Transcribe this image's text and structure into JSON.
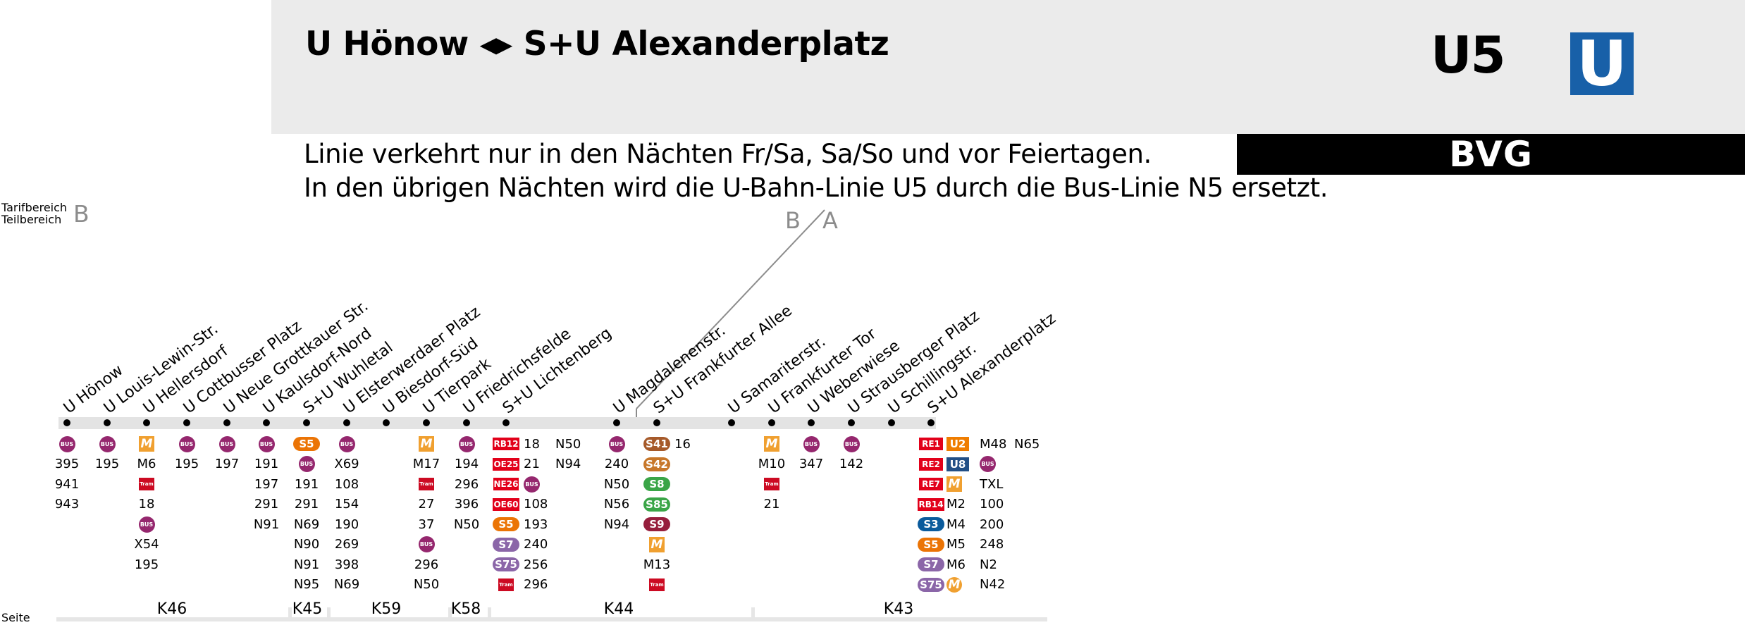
{
  "header": {
    "title": "U Hönow ◂▸ S+U Alexanderplatz",
    "line": "U5",
    "logo_letter": "U",
    "brand": "BVG",
    "colors": {
      "ubahn_blue": "#1860a8",
      "header_grey": "#ebebeb"
    }
  },
  "notice": {
    "line1": "Linie verkehrt nur in den Nächten Fr/Sa, Sa/So und vor Feiertagen.",
    "line2": "In den übrigen Nächten wird die U-Bahn-Linie U5 durch die Bus-Linie N5 ersetzt."
  },
  "tarif": {
    "label1": "Tarifbereich",
    "label2": "Teilbereich",
    "value": "B",
    "zone_left": "B",
    "zone_right": "A"
  },
  "stations": [
    {
      "name": "U Hönow",
      "connections": [
        {
          "t": "bus"
        },
        {
          "t": "text",
          "v": "395"
        },
        {
          "t": "text",
          "v": "941"
        },
        {
          "t": "text",
          "v": "943"
        }
      ]
    },
    {
      "name": "U Louis-Lewin-Str.",
      "connections": [
        {
          "t": "bus"
        },
        {
          "t": "text",
          "v": "195"
        }
      ]
    },
    {
      "name": "U Hellersdorf",
      "connections": [
        {
          "t": "metro"
        },
        {
          "t": "text",
          "v": "M6"
        },
        {
          "t": "tram"
        },
        {
          "t": "text",
          "v": "18"
        },
        {
          "t": "bus"
        },
        {
          "t": "text",
          "v": "X54"
        },
        {
          "t": "text",
          "v": "195"
        }
      ]
    },
    {
      "name": "U Cottbusser Platz",
      "connections": [
        {
          "t": "bus"
        },
        {
          "t": "text",
          "v": "195"
        }
      ]
    },
    {
      "name": "U Neue Grottkauer Str.",
      "connections": [
        {
          "t": "bus"
        },
        {
          "t": "text",
          "v": "197"
        }
      ]
    },
    {
      "name": "U Kaulsdorf-Nord",
      "connections": [
        {
          "t": "bus"
        },
        {
          "t": "text",
          "v": "191"
        },
        {
          "t": "text",
          "v": "197"
        },
        {
          "t": "text",
          "v": "291"
        },
        {
          "t": "text",
          "v": "N91"
        }
      ]
    },
    {
      "name": "S+U Wuhletal",
      "connections": [
        {
          "t": "sbahn",
          "v": "S5",
          "c": "#eb7405"
        },
        {
          "t": "bus"
        },
        {
          "t": "text",
          "v": "191"
        },
        {
          "t": "text",
          "v": "291"
        },
        {
          "t": "text",
          "v": "N69"
        },
        {
          "t": "text",
          "v": "N90"
        },
        {
          "t": "text",
          "v": "N91"
        },
        {
          "t": "text",
          "v": "N95"
        }
      ]
    },
    {
      "name": "U Elsterwerdaer Platz",
      "connections": [
        {
          "t": "bus"
        },
        {
          "t": "text",
          "v": "X69"
        },
        {
          "t": "text",
          "v": "108"
        },
        {
          "t": "text",
          "v": "154"
        },
        {
          "t": "text",
          "v": "190"
        },
        {
          "t": "text",
          "v": "269"
        },
        {
          "t": "text",
          "v": "398"
        },
        {
          "t": "text",
          "v": "N69"
        }
      ]
    },
    {
      "name": "U Biesdorf-Süd",
      "connections": []
    },
    {
      "name": "U Tierpark",
      "connections": [
        {
          "t": "metro"
        },
        {
          "t": "text",
          "v": "M17"
        },
        {
          "t": "tram"
        },
        {
          "t": "text",
          "v": "27"
        },
        {
          "t": "text",
          "v": "37"
        },
        {
          "t": "bus"
        },
        {
          "t": "text",
          "v": "296"
        },
        {
          "t": "text",
          "v": "N50"
        }
      ]
    },
    {
      "name": "U Friedrichsfelde",
      "connections": [
        {
          "t": "bus"
        },
        {
          "t": "text",
          "v": "194"
        },
        {
          "t": "text",
          "v": "296"
        },
        {
          "t": "text",
          "v": "396"
        },
        {
          "t": "text",
          "v": "N50"
        }
      ]
    },
    {
      "name": "S+U Lichtenberg",
      "connections": [
        {
          "t": "rail",
          "v": "RB12"
        },
        {
          "t": "rail",
          "v": "OE25"
        },
        {
          "t": "rail",
          "v": "NE26"
        },
        {
          "t": "rail",
          "v": "OE60"
        },
        {
          "t": "sbahn",
          "v": "S5",
          "c": "#eb7405"
        },
        {
          "t": "sbahn",
          "v": "S7",
          "c": "#8b66a8"
        },
        {
          "t": "sbahn",
          "v": "S75",
          "c": "#8b66a8"
        },
        {
          "t": "tram"
        }
      ],
      "extra_cols": [
        [
          {
            "t": "text",
            "v": "18"
          },
          {
            "t": "text",
            "v": "21"
          },
          {
            "t": "bus"
          },
          {
            "t": "text",
            "v": "108"
          },
          {
            "t": "text",
            "v": "193"
          },
          {
            "t": "text",
            "v": "240"
          },
          {
            "t": "text",
            "v": "256"
          },
          {
            "t": "text",
            "v": "296"
          }
        ],
        [
          {
            "t": "text",
            "v": "N50"
          },
          {
            "t": "text",
            "v": "N94"
          }
        ]
      ]
    },
    {
      "name": "U Magdalenenstr.",
      "connections": [
        {
          "t": "bus"
        },
        {
          "t": "text",
          "v": "240"
        },
        {
          "t": "text",
          "v": "N50"
        },
        {
          "t": "text",
          "v": "N56"
        },
        {
          "t": "text",
          "v": "N94"
        }
      ]
    },
    {
      "name": "S+U Frankfurter Allee",
      "connections": [
        {
          "t": "sbahn",
          "v": "S41",
          "c": "#a65a2a"
        },
        {
          "t": "sbahn",
          "v": "S42",
          "c": "#c7772a"
        },
        {
          "t": "sbahn",
          "v": "S8",
          "c": "#3aa547"
        },
        {
          "t": "sbahn",
          "v": "S85",
          "c": "#3aa547"
        },
        {
          "t": "sbahn",
          "v": "S9",
          "c": "#961e3c"
        },
        {
          "t": "metro"
        },
        {
          "t": "text",
          "v": "M13"
        },
        {
          "t": "tram"
        }
      ],
      "extra_cols": [
        [
          {
            "t": "text",
            "v": "16"
          }
        ]
      ]
    },
    {
      "name": "U Samariterstr.",
      "connections": []
    },
    {
      "name": "U Frankfurter Tor",
      "connections": [
        {
          "t": "metro"
        },
        {
          "t": "text",
          "v": "M10"
        },
        {
          "t": "tram"
        },
        {
          "t": "text",
          "v": "21"
        }
      ]
    },
    {
      "name": "U Weberwiese",
      "connections": [
        {
          "t": "bus"
        },
        {
          "t": "text",
          "v": "347"
        }
      ]
    },
    {
      "name": "U Strausberger Platz",
      "connections": [
        {
          "t": "bus"
        },
        {
          "t": "text",
          "v": "142"
        }
      ]
    },
    {
      "name": "U Schillingstr.",
      "connections": []
    },
    {
      "name": "S+U Alexanderplatz",
      "connections": [
        {
          "t": "rail",
          "v": "RE1"
        },
        {
          "t": "rail",
          "v": "RE2"
        },
        {
          "t": "rail",
          "v": "RE7"
        },
        {
          "t": "rail",
          "v": "RB14"
        },
        {
          "t": "sbahn",
          "v": "S3",
          "c": "#0a5b9c"
        },
        {
          "t": "sbahn",
          "v": "S5",
          "c": "#eb7405"
        },
        {
          "t": "sbahn",
          "v": "S7",
          "c": "#8b66a8"
        },
        {
          "t": "sbahn",
          "v": "S75",
          "c": "#8b66a8"
        }
      ],
      "extra_cols": [
        [
          {
            "t": "ubadge",
            "v": "U2",
            "c": "#ef7d00"
          },
          {
            "t": "ubadge",
            "v": "U8",
            "c": "#224f86"
          },
          {
            "t": "metro"
          },
          {
            "t": "text",
            "v": "M2"
          },
          {
            "t": "text",
            "v": "M4"
          },
          {
            "t": "text",
            "v": "M5"
          },
          {
            "t": "text",
            "v": "M6"
          },
          {
            "t": "metroc"
          }
        ],
        [
          {
            "t": "text",
            "v": "M48"
          },
          {
            "t": "bus"
          },
          {
            "t": "text",
            "v": "TXL"
          },
          {
            "t": "text",
            "v": "100"
          },
          {
            "t": "text",
            "v": "200"
          },
          {
            "t": "text",
            "v": "248"
          },
          {
            "t": "text",
            "v": "N2"
          },
          {
            "t": "text",
            "v": "N42"
          }
        ],
        [
          {
            "t": "text",
            "v": "N65"
          }
        ]
      ]
    }
  ],
  "icons": {
    "bus": "BUS",
    "tram": "Tram",
    "metro": "M"
  },
  "footer": {
    "label": "Seite",
    "pages": [
      "K46",
      "K45",
      "K59",
      "K58",
      "K44",
      "K43"
    ]
  }
}
